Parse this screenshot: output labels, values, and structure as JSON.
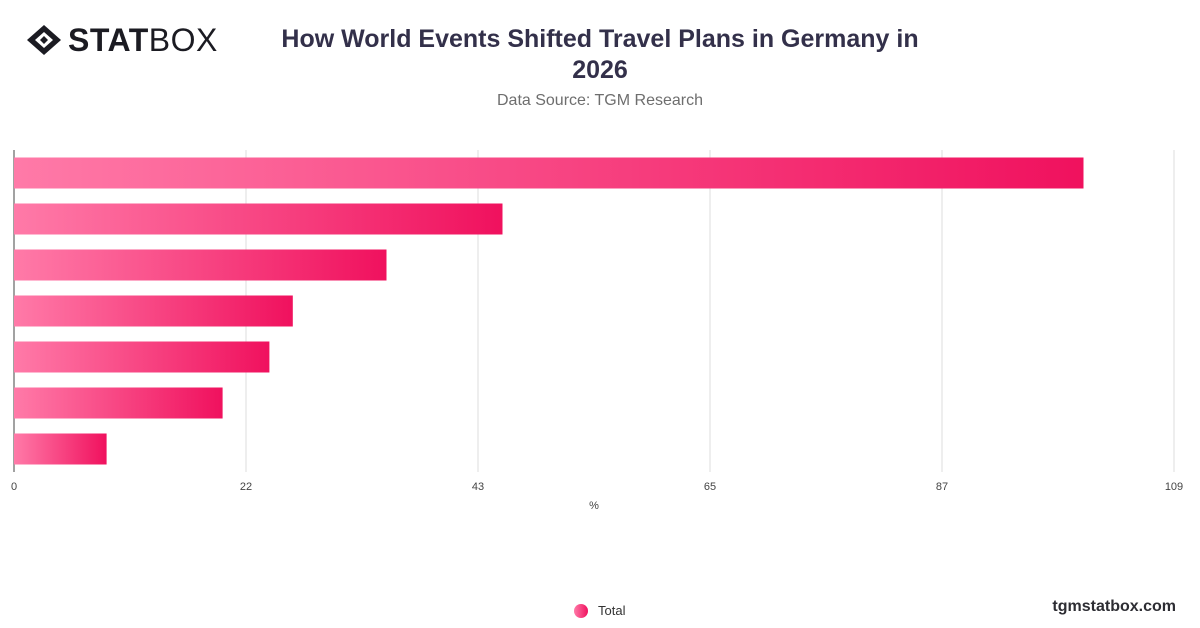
{
  "brand": {
    "logo_bold": "STAT",
    "logo_light": "BOX",
    "footer": "tgmstatbox.com"
  },
  "header": {
    "title": "How World Events Shifted Travel Plans in Germany in 2026",
    "subtitle": "Data Source: TGM Research"
  },
  "colors": {
    "bar_start": "#ff7aa8",
    "bar_end": "#f0115e",
    "grid": "#dddddd",
    "axis_text": "#444444"
  },
  "legend": {
    "label": "Total"
  },
  "chart_data": {
    "type": "bar",
    "orientation": "horizontal",
    "title": "How World Events Shifted Travel Plans in Germany in 2026",
    "subtitle": "Data Source: TGM Research",
    "xlabel": "%",
    "ylabel": "",
    "xlim": [
      0,
      109
    ],
    "x_ticks": [
      "0",
      "22",
      "43",
      "65",
      "87",
      "109"
    ],
    "grid": true,
    "legend_position": "bottom",
    "categories": [
      "",
      "",
      "",
      "",
      "",
      "",
      ""
    ],
    "series": [
      {
        "name": "Total",
        "values": [
          100.5,
          45.9,
          35,
          26.2,
          24,
          19.6,
          8.7
        ]
      }
    ]
  }
}
